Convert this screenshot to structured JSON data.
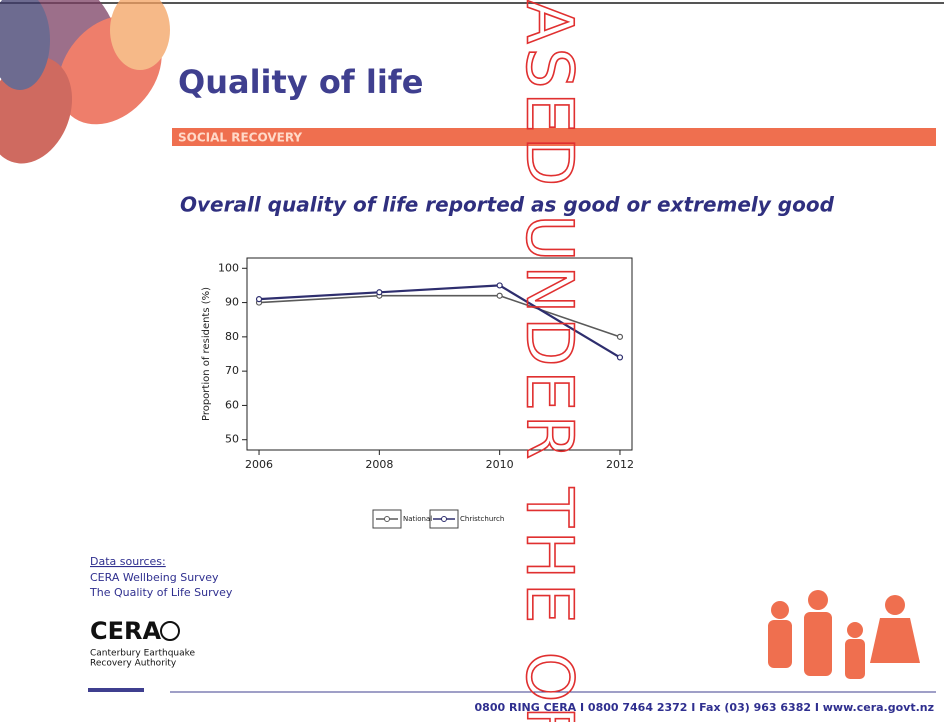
{
  "header": {
    "title": "Quality of life",
    "banner": "SOCIAL RECOVERY"
  },
  "chart_data": {
    "type": "line",
    "title": "Overall quality of life reported as good or extremely good",
    "y_label": "Proportion of residents (%)",
    "x": [
      2006,
      2008,
      2010,
      2012
    ],
    "series": [
      {
        "name": "National",
        "color": "#5a5a5a",
        "values": [
          90,
          92,
          92,
          80
        ]
      },
      {
        "name": "Christchurch",
        "color": "#2e2e6e",
        "values": [
          91,
          93,
          95,
          74
        ]
      }
    ],
    "xlim": [
      2005.8,
      2012.2
    ],
    "xticks": [
      2006,
      2008,
      2010,
      2012
    ],
    "ylim": [
      47,
      103
    ],
    "yticks": [
      50,
      60,
      70,
      80,
      90,
      100
    ],
    "grid": false,
    "legend": "bottom"
  },
  "sources": {
    "heading": "Data sources:",
    "items": [
      "CERA Wellbeing Survey",
      "The Quality of Life Survey"
    ]
  },
  "logo": {
    "name": "CERA",
    "lines": [
      "Canterbury Earthquake",
      "Recovery Authority"
    ]
  },
  "footer": "0800 RING CERA  I  0800 7464 2372  I  Fax (03) 963 6382  I  www.cera.govt.nz",
  "watermark": "ASED UNDER THE OF"
}
